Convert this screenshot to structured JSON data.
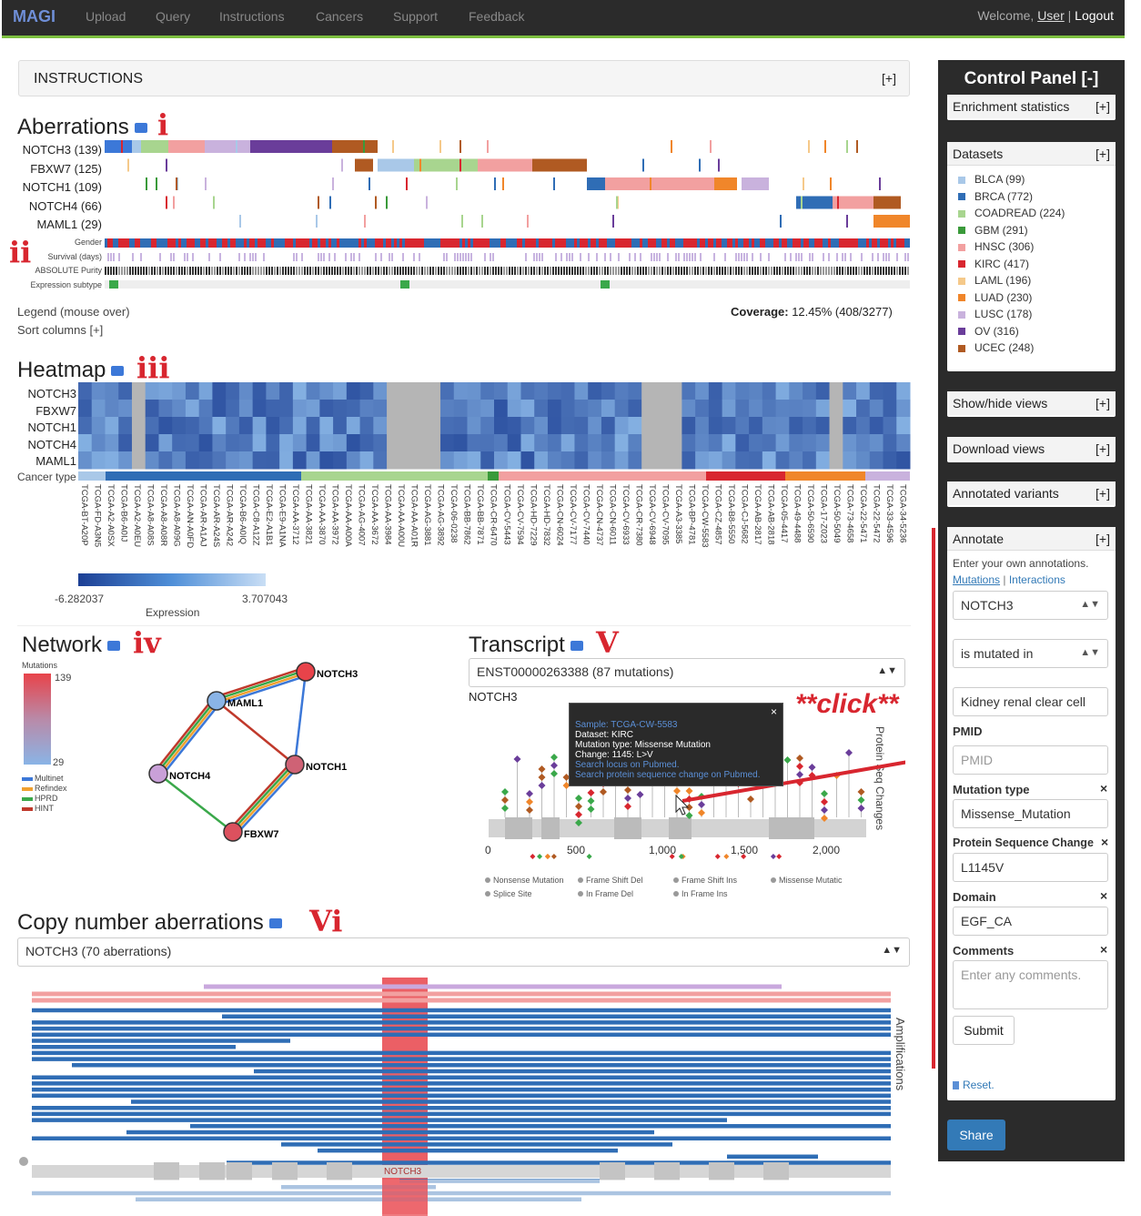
{
  "navbar": {
    "brand": "MAGI",
    "items": [
      "Upload",
      "Query",
      "Instructions",
      "Cancers",
      "Support",
      "Feedback"
    ],
    "welcome": "Welcome,",
    "user": "User",
    "sep": "|",
    "logout": "Logout"
  },
  "instructions": {
    "title": "INSTRUCTIONS",
    "toggle": "[+]"
  },
  "aberrations": {
    "title": "Aberrations",
    "roman": "i",
    "roman2": "ii",
    "genes": [
      "NOTCH3 (139)",
      "FBXW7 (125)",
      "NOTCH1 (109)",
      "NOTCH4 (66)",
      "MAML1 (29)"
    ],
    "annotations": [
      "Gender",
      "Survival (days)",
      "ABSOLUTE Purity",
      "Expression subtype"
    ],
    "legend": "Legend (mouse over)",
    "sort": "Sort columns [+]",
    "coverage_label": "Coverage:",
    "coverage_value": "12.45% (408/3277)"
  },
  "heatmap": {
    "title": "Heatmap",
    "roman": "iii",
    "genes": [
      "NOTCH3",
      "FBXW7",
      "NOTCH1",
      "NOTCH4",
      "MAML1"
    ],
    "cancer_type": "Cancer type",
    "samples": [
      "TCGA-BT-A20P",
      "TCGA-FD-A3N5",
      "TCGA-A2-A0SX",
      "TCGA-B6-A0IJ",
      "TCGA-A2-A0EU",
      "TCGA-A8-A08S",
      "TCGA-A8-A08R",
      "TCGA-A8-A09G",
      "TCGA-AN-A0FD",
      "TCGA-AR-A1AJ",
      "TCGA-AR-A24S",
      "TCGA-AR-A242",
      "TCGA-B6-A0IQ",
      "TCGA-C8-A12Z",
      "TCGA-E2-A1B1",
      "TCGA-E9-A1NA",
      "TCGA-AA-3712",
      "TCGA-AA-3821",
      "TCGA-AA-3870",
      "TCGA-AA-3972",
      "TCGA-AA-A00A",
      "TCGA-AG-4007",
      "TCGA-AA-3672",
      "TCGA-AA-3984",
      "TCGA-AA-A00U",
      "TCGA-AA-A01R",
      "TCGA-AG-3881",
      "TCGA-AG-3892",
      "TCGA-06-0238",
      "TCGA-BB-7862",
      "TCGA-BB-7871",
      "TCGA-CR-6470",
      "TCGA-CV-5443",
      "TCGA-CV-7594",
      "TCGA-HD-7229",
      "TCGA-HD-7832",
      "TCGA-CN-6024",
      "TCGA-CV-7177",
      "TCGA-CV-7440",
      "TCGA-CN-4737",
      "TCGA-CN-6011",
      "TCGA-CV-6933",
      "TCGA-CR-7380",
      "TCGA-CV-6948",
      "TCGA-CV-7095",
      "TCGA-A3-3385",
      "TCGA-BP-4781",
      "TCGA-CW-5583",
      "TCGA-CZ-4857",
      "TCGA-B8-5550",
      "TCGA-CJ-5682",
      "TCGA-AB-2817",
      "TCGA-AB-2818",
      "TCGA-05-4417",
      "TCGA-49-4488",
      "TCGA-50-6590",
      "TCGA-17-Z023",
      "TCGA-50-5049",
      "TCGA-73-4658",
      "TCGA-22-5471",
      "TCGA-22-5472",
      "TCGA-33-4596",
      "TCGA-34-5236"
    ],
    "scale_min": "-6.282037",
    "scale_max": "3.707043",
    "scale_label": "Expression",
    "colors": {
      "low": "#1c3f94",
      "high": "#c9def5",
      "missing": "#b5b5b5"
    }
  },
  "network": {
    "title": "Network",
    "roman": "iv",
    "legend_title": "Mutations",
    "max": "139",
    "min": "29",
    "networks": [
      {
        "name": "Multinet",
        "color": "#3c78d8"
      },
      {
        "name": "Refindex",
        "color": "#f0a030"
      },
      {
        "name": "HPRD",
        "color": "#3aa84a"
      },
      {
        "name": "HINT",
        "color": "#c0392b"
      }
    ],
    "nodes": [
      {
        "name": "NOTCH3",
        "mutations": 139
      },
      {
        "name": "MAML1",
        "mutations": 29
      },
      {
        "name": "NOTCH1",
        "mutations": 109
      },
      {
        "name": "NOTCH4",
        "mutations": 66
      },
      {
        "name": "FBXW7",
        "mutations": 125
      }
    ]
  },
  "transcript": {
    "title": "Transcript",
    "roman": "V",
    "select": "ENST00000263388 (87 mutations)",
    "gene": "NOTCH3",
    "click": "**click**",
    "side_label": "Protein Seq Changes",
    "ticks": [
      "0",
      "500",
      "1,000",
      "1,500",
      "2,000"
    ],
    "tooltip": {
      "sample": "Sample: TCGA-CW-5583",
      "dataset": "Dataset: KIRC",
      "mutation_type": "Mutation type: Missense Mutation",
      "change": "Change: 1145: L>V",
      "link1": "Search locus on Pubmed.",
      "link2": "Search protein sequence change on Pubmed.",
      "close": "×"
    },
    "legend": [
      "Nonsense Mutation",
      "Frame Shift Del",
      "Frame Shift Ins",
      "Missense Mutatic",
      "Splice Site",
      "In Frame Del",
      "In Frame Ins"
    ]
  },
  "cna": {
    "title": "Copy number aberrations",
    "roman": "Vi",
    "select": "NOTCH3 (70 aberrations)",
    "side_label": "Amplifications",
    "gene_label": "NOTCH3"
  },
  "control_panel": {
    "title": "Control Panel [-]",
    "enrichment": "Enrichment statistics",
    "datasets_title": "Datasets",
    "datasets": [
      {
        "name": "BLCA (99)",
        "color": "#a9c8e8"
      },
      {
        "name": "BRCA (772)",
        "color": "#2f6db5"
      },
      {
        "name": "COADREAD (224)",
        "color": "#a8d58f"
      },
      {
        "name": "GBM (291)",
        "color": "#3a9a3a"
      },
      {
        "name": "HNSC (306)",
        "color": "#f2a0a0"
      },
      {
        "name": "KIRC (417)",
        "color": "#d8262f"
      },
      {
        "name": "LAML (196)",
        "color": "#f5c98a"
      },
      {
        "name": "LUAD (230)",
        "color": "#f0862a"
      },
      {
        "name": "LUSC (178)",
        "color": "#c9b2dd"
      },
      {
        "name": "OV (316)",
        "color": "#6a3d9a"
      },
      {
        "name": "UCEC (248)",
        "color": "#b05a22"
      }
    ],
    "show_hide": "Show/hide views",
    "download": "Download views",
    "annotated": "Annotated variants",
    "annotate": "Annotate",
    "plus": "[+]",
    "annotate_hint": "Enter your own annotations.",
    "tab_mutations": "Mutations",
    "tab_sep": "|",
    "tab_interactions": "Interactions",
    "gene_select": "NOTCH3",
    "relation_select": "is mutated in",
    "cancer_field": "Kidney renal clear cell",
    "pmid_label": "PMID",
    "pmid_placeholder": "PMID",
    "mutation_type_label": "Mutation type",
    "mutation_type_value": "Missense_Mutation",
    "psc_label": "Protein Sequence Change",
    "psc_value": "L1145V",
    "domain_label": "Domain",
    "domain_value": "EGF_CA",
    "comments_label": "Comments",
    "comments_placeholder": "Enter any comments.",
    "submit": "Submit",
    "reset": "Reset.",
    "remove": "×",
    "share": "Share"
  }
}
